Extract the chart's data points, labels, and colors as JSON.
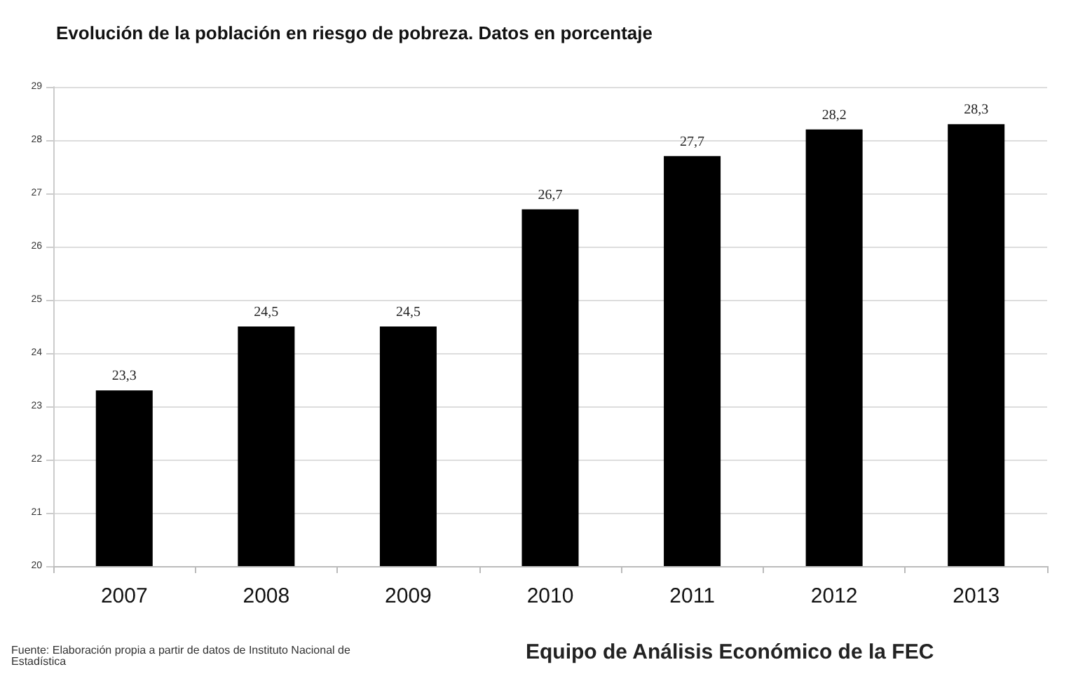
{
  "chart_data": {
    "type": "bar",
    "title": "Evolución de la población en riesgo de pobreza. Datos en porcentaje",
    "categories": [
      "2007",
      "2008",
      "2009",
      "2010",
      "2011",
      "2012",
      "2013"
    ],
    "values": [
      23.3,
      24.5,
      24.5,
      26.7,
      27.7,
      28.2,
      28.3
    ],
    "value_labels": [
      "23,3",
      "24,5",
      "24,5",
      "26,7",
      "27,7",
      "28,2",
      "28,3"
    ],
    "color": "#000000",
    "ylim": [
      20,
      29
    ],
    "yticks": [
      20,
      21,
      22,
      23,
      24,
      25,
      26,
      27,
      28,
      29
    ],
    "grid": "y",
    "annotations": [
      "Fuente: Elaboración propia a partir de datos de Instituto Nacional de Estadística",
      "Equipo de Análisis Económico de la FEC"
    ]
  }
}
